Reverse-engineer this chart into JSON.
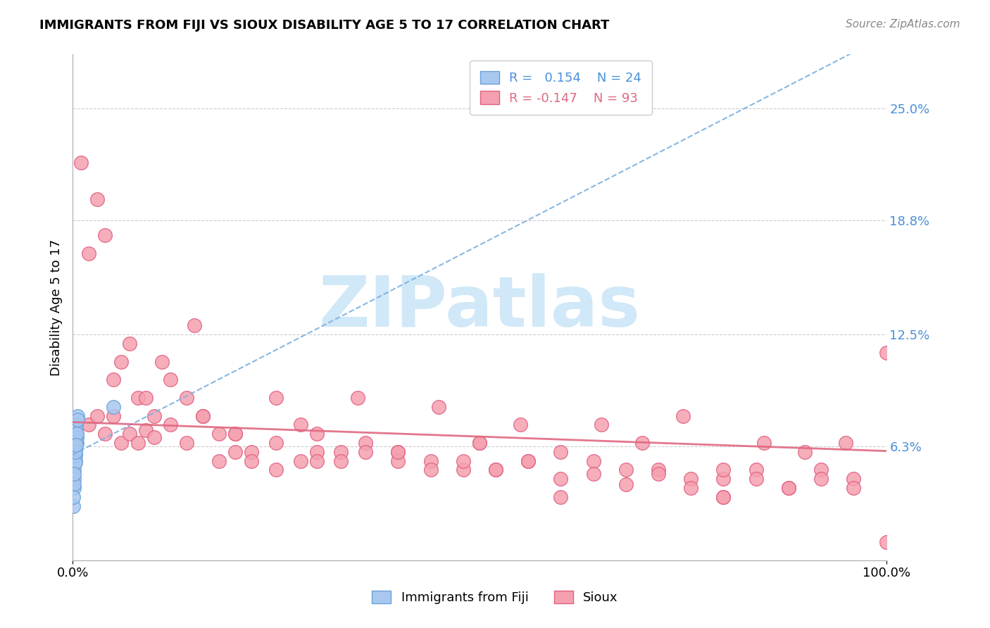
{
  "title": "IMMIGRANTS FROM FIJI VS SIOUX DISABILITY AGE 5 TO 17 CORRELATION CHART",
  "source": "Source: ZipAtlas.com",
  "xlabel": "",
  "ylabel": "Disability Age 5 to 17",
  "xlim": [
    0.0,
    1.0
  ],
  "ylim": [
    0.0,
    0.28
  ],
  "x_ticks": [
    0.0,
    1.0
  ],
  "x_tick_labels": [
    "0.0%",
    "100.0%"
  ],
  "y_ticks": [
    0.063,
    0.125,
    0.188,
    0.25
  ],
  "y_tick_labels": [
    "6.3%",
    "12.5%",
    "18.8%",
    "25.0%"
  ],
  "fiji_R": 0.154,
  "fiji_N": 24,
  "sioux_R": -0.147,
  "sioux_N": 93,
  "fiji_color": "#a8c8f0",
  "fiji_edge": "#6aa0d8",
  "sioux_color": "#f5a0b0",
  "sioux_edge": "#e06080",
  "fiji_line_color": "#7ab0e0",
  "sioux_line_color": "#e06880",
  "watermark": "ZIPatlas",
  "watermark_color": "#d0e8f8",
  "fiji_x": [
    0.002,
    0.003,
    0.004,
    0.003,
    0.005,
    0.006,
    0.004,
    0.002,
    0.001,
    0.003,
    0.002,
    0.004,
    0.005,
    0.003,
    0.006,
    0.002,
    0.004,
    0.003,
    0.005,
    0.002,
    0.001,
    0.003,
    0.004,
    0.05
  ],
  "fiji_y": [
    0.05,
    0.06,
    0.07,
    0.055,
    0.065,
    0.08,
    0.075,
    0.04,
    0.03,
    0.058,
    0.045,
    0.072,
    0.068,
    0.062,
    0.078,
    0.042,
    0.066,
    0.054,
    0.07,
    0.048,
    0.035,
    0.06,
    0.064,
    0.085
  ],
  "sioux_x": [
    0.01,
    0.02,
    0.03,
    0.04,
    0.05,
    0.06,
    0.07,
    0.08,
    0.09,
    0.1,
    0.11,
    0.12,
    0.14,
    0.16,
    0.18,
    0.2,
    0.22,
    0.25,
    0.28,
    0.3,
    0.33,
    0.36,
    0.4,
    0.44,
    0.48,
    0.52,
    0.56,
    0.6,
    0.64,
    0.68,
    0.72,
    0.76,
    0.8,
    0.84,
    0.88,
    0.92,
    0.96,
    0.02,
    0.03,
    0.04,
    0.05,
    0.06,
    0.07,
    0.08,
    0.09,
    0.1,
    0.12,
    0.14,
    0.16,
    0.18,
    0.2,
    0.22,
    0.25,
    0.28,
    0.3,
    0.33,
    0.36,
    0.4,
    0.44,
    0.48,
    0.52,
    0.56,
    0.6,
    0.64,
    0.68,
    0.72,
    0.76,
    0.8,
    0.84,
    0.88,
    0.92,
    0.96,
    1.0,
    0.15,
    0.25,
    0.35,
    0.45,
    0.55,
    0.65,
    0.75,
    0.85,
    0.95,
    0.5,
    0.7,
    0.9,
    0.3,
    0.4,
    0.6,
    0.8,
    1.0,
    0.2,
    0.5,
    0.8
  ],
  "sioux_y": [
    0.22,
    0.17,
    0.2,
    0.18,
    0.1,
    0.11,
    0.12,
    0.09,
    0.09,
    0.08,
    0.11,
    0.1,
    0.09,
    0.08,
    0.07,
    0.07,
    0.06,
    0.065,
    0.075,
    0.07,
    0.06,
    0.065,
    0.06,
    0.055,
    0.05,
    0.05,
    0.055,
    0.06,
    0.055,
    0.05,
    0.05,
    0.045,
    0.045,
    0.05,
    0.04,
    0.05,
    0.045,
    0.075,
    0.08,
    0.07,
    0.08,
    0.065,
    0.07,
    0.065,
    0.072,
    0.068,
    0.075,
    0.065,
    0.08,
    0.055,
    0.06,
    0.055,
    0.05,
    0.055,
    0.06,
    0.055,
    0.06,
    0.055,
    0.05,
    0.055,
    0.05,
    0.055,
    0.045,
    0.048,
    0.042,
    0.048,
    0.04,
    0.05,
    0.045,
    0.04,
    0.045,
    0.04,
    0.115,
    0.13,
    0.09,
    0.09,
    0.085,
    0.075,
    0.075,
    0.08,
    0.065,
    0.065,
    0.065,
    0.065,
    0.06,
    0.055,
    0.06,
    0.035,
    0.035,
    0.01,
    0.07,
    0.065,
    0.035
  ]
}
